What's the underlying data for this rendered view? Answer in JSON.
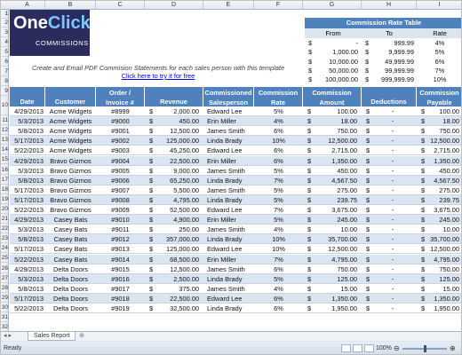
{
  "columns": [
    "A",
    "B",
    "C",
    "D",
    "E",
    "F",
    "G",
    "H",
    "I"
  ],
  "row_numbers": [
    "1",
    "2",
    "3",
    "4",
    "5",
    "6",
    "7",
    "8",
    "9",
    "10",
    "11",
    "12",
    "13",
    "14",
    "15",
    "16",
    "17",
    "18",
    "19",
    "20",
    "21",
    "22",
    "23",
    "24",
    "25",
    "26",
    "27",
    "28",
    "29",
    "30",
    "31",
    "32",
    "33"
  ],
  "logo": {
    "main": "One",
    "accent": "Click",
    "sub": "COMMISSIONS"
  },
  "rate_table": {
    "title": "Commission Rate Table",
    "headers": [
      "From",
      "To",
      "Rate"
    ],
    "rows": [
      [
        "$",
        "-",
        "$",
        "999.99",
        "4%"
      ],
      [
        "$",
        "1,000.00",
        "$",
        "9,999.99",
        "5%"
      ],
      [
        "$",
        "10,000.00",
        "$",
        "49,999.99",
        "6%"
      ],
      [
        "$",
        "50,000.00",
        "$",
        "99,999.99",
        "7%"
      ],
      [
        "$",
        "100,000.00",
        "$",
        "999,999.99",
        "10%"
      ]
    ]
  },
  "note": "Create and Email PDF Commision Statements for each sales person with this template",
  "link": "Click here to try it for free",
  "headers": [
    "Date",
    "Customer",
    "Order / Invoice #",
    "Revenue",
    "Commissioned Salesperson",
    "Commission Rate",
    "Commission Amount",
    "Deductions",
    "Commission Payable"
  ],
  "rows": [
    [
      "4/29/2013",
      "Acme Widgets",
      "#8999",
      "2,000.00",
      "Edward Lee",
      "5%",
      "100.00",
      "-",
      "100.00"
    ],
    [
      "5/3/2013",
      "Acme Widgets",
      "#9000",
      "450.00",
      "Erin Miller",
      "4%",
      "18.00",
      "-",
      "18.00"
    ],
    [
      "5/8/2013",
      "Acme Widgets",
      "#9001",
      "12,500.00",
      "James Smith",
      "6%",
      "750.00",
      "-",
      "750.00"
    ],
    [
      "5/17/2013",
      "Acme Widgets",
      "#9002",
      "125,000.00",
      "Linda Brady",
      "10%",
      "12,500.00",
      "-",
      "12,500.00"
    ],
    [
      "5/22/2013",
      "Acme Widgets",
      "#9003",
      "45,250.00",
      "Edward Lee",
      "6%",
      "2,715.00",
      "-",
      "2,715.00"
    ],
    [
      "4/29/2013",
      "Bravo Gizmos",
      "#9004",
      "22,500.00",
      "Erin Miller",
      "6%",
      "1,350.00",
      "-",
      "1,350.00"
    ],
    [
      "5/3/2013",
      "Bravo Gizmos",
      "#9005",
      "9,000.00",
      "James Smith",
      "5%",
      "450.00",
      "-",
      "450.00"
    ],
    [
      "5/8/2013",
      "Bravo Gizmos",
      "#9006",
      "65,250.00",
      "Linda Brady",
      "7%",
      "4,567.50",
      "-",
      "4,567.50"
    ],
    [
      "5/17/2013",
      "Bravo Gizmos",
      "#9007",
      "5,500.00",
      "James Smith",
      "5%",
      "275.00",
      "-",
      "275.00"
    ],
    [
      "5/17/2013",
      "Bravo Gizmos",
      "#9008",
      "4,795.00",
      "Linda Brady",
      "5%",
      "239.75",
      "-",
      "239.75"
    ],
    [
      "5/22/2013",
      "Bravo Gizmos",
      "#9009",
      "52,500.00",
      "Edward Lee",
      "7%",
      "3,675.00",
      "-",
      "3,675.00"
    ],
    [
      "4/29/2013",
      "Casey Bats",
      "#9010",
      "4,900.00",
      "Erin Miller",
      "5%",
      "245.00",
      "-",
      "245.00"
    ],
    [
      "5/3/2013",
      "Casey Bats",
      "#9011",
      "250.00",
      "James Smith",
      "4%",
      "10.00",
      "-",
      "10.00"
    ],
    [
      "5/8/2013",
      "Casey Bats",
      "#9012",
      "357,000.00",
      "Linda Brady",
      "10%",
      "35,700.00",
      "-",
      "35,700.00"
    ],
    [
      "5/17/2013",
      "Casey Bats",
      "#9013",
      "125,000.00",
      "Edward Lee",
      "10%",
      "12,500.00",
      "-",
      "12,500.00"
    ],
    [
      "5/22/2013",
      "Casey Bats",
      "#9014",
      "68,500.00",
      "Erin Miller",
      "7%",
      "4,795.00",
      "-",
      "4,795.00"
    ],
    [
      "4/29/2013",
      "Delta Doors",
      "#9015",
      "12,500.00",
      "James Smith",
      "6%",
      "750.00",
      "-",
      "750.00"
    ],
    [
      "5/3/2013",
      "Delta Doors",
      "#9016",
      "2,500.00",
      "Linda Brady",
      "5%",
      "125.00",
      "-",
      "125.00"
    ],
    [
      "5/8/2013",
      "Delta Doors",
      "#9017",
      "375.00",
      "James Smith",
      "4%",
      "15.00",
      "-",
      "15.00"
    ],
    [
      "5/17/2013",
      "Delta Doors",
      "#9018",
      "22,500.00",
      "Edward Lee",
      "6%",
      "1,350.00",
      "-",
      "1,350.00"
    ],
    [
      "5/22/2013",
      "Delta Doors",
      "#9019",
      "32,500.00",
      "Linda Brady",
      "6%",
      "1,950.00",
      "-",
      "1,950.00"
    ]
  ],
  "currency_symbol": "$",
  "sheet_tab": "Sales Report",
  "status": {
    "ready": "Ready",
    "zoom": "100%"
  },
  "colors": {
    "header_blue": "#4f81bd",
    "band_blue": "#dbe5f1",
    "logo_bg": "#2b2b5e"
  }
}
